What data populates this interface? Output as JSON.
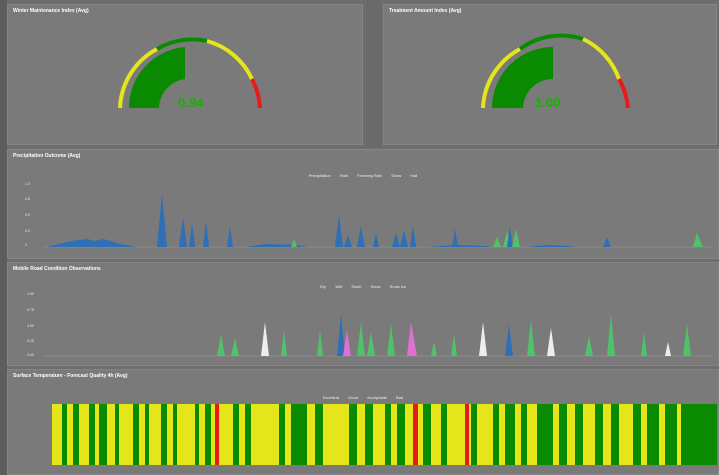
{
  "panels": {
    "winter": {
      "title": "Winter Maintenance Index (Avg)",
      "value": "0.94",
      "level": 0.94
    },
    "treatment": {
      "title": "Treatment Amount Index (Avg)",
      "value": "1.00",
      "level": 1.0
    },
    "precip": {
      "title": "Precipitation Outcome (Avg)",
      "legend": [
        "Precipitation",
        "Rain",
        "Freezing Rain",
        "Snow",
        "Hail"
      ],
      "yticks": [
        "1.0",
        "0.8",
        "0.5",
        "0.3",
        "0"
      ]
    },
    "mobile": {
      "title": "Mobile Road Condition Observations",
      "legend": [
        "Dry",
        "Wet",
        "Slush",
        "Snow",
        "Snow Ice"
      ],
      "yticks": [
        "1.00",
        "0.75",
        "0.50",
        "0.25",
        "0.00"
      ]
    },
    "surface": {
      "title": "Surface Temperature - Forecast Quality 4h (Avg)",
      "legend": [
        "Excellent",
        "Good",
        "Acceptable",
        "Bad"
      ]
    }
  },
  "colors": {
    "green": "#0a8a00",
    "yellow": "#e4e61a",
    "red": "#e81b1b",
    "blue": "#2e6fb5",
    "lightgreen": "#4fc26a",
    "pink": "#e070d0"
  }
}
